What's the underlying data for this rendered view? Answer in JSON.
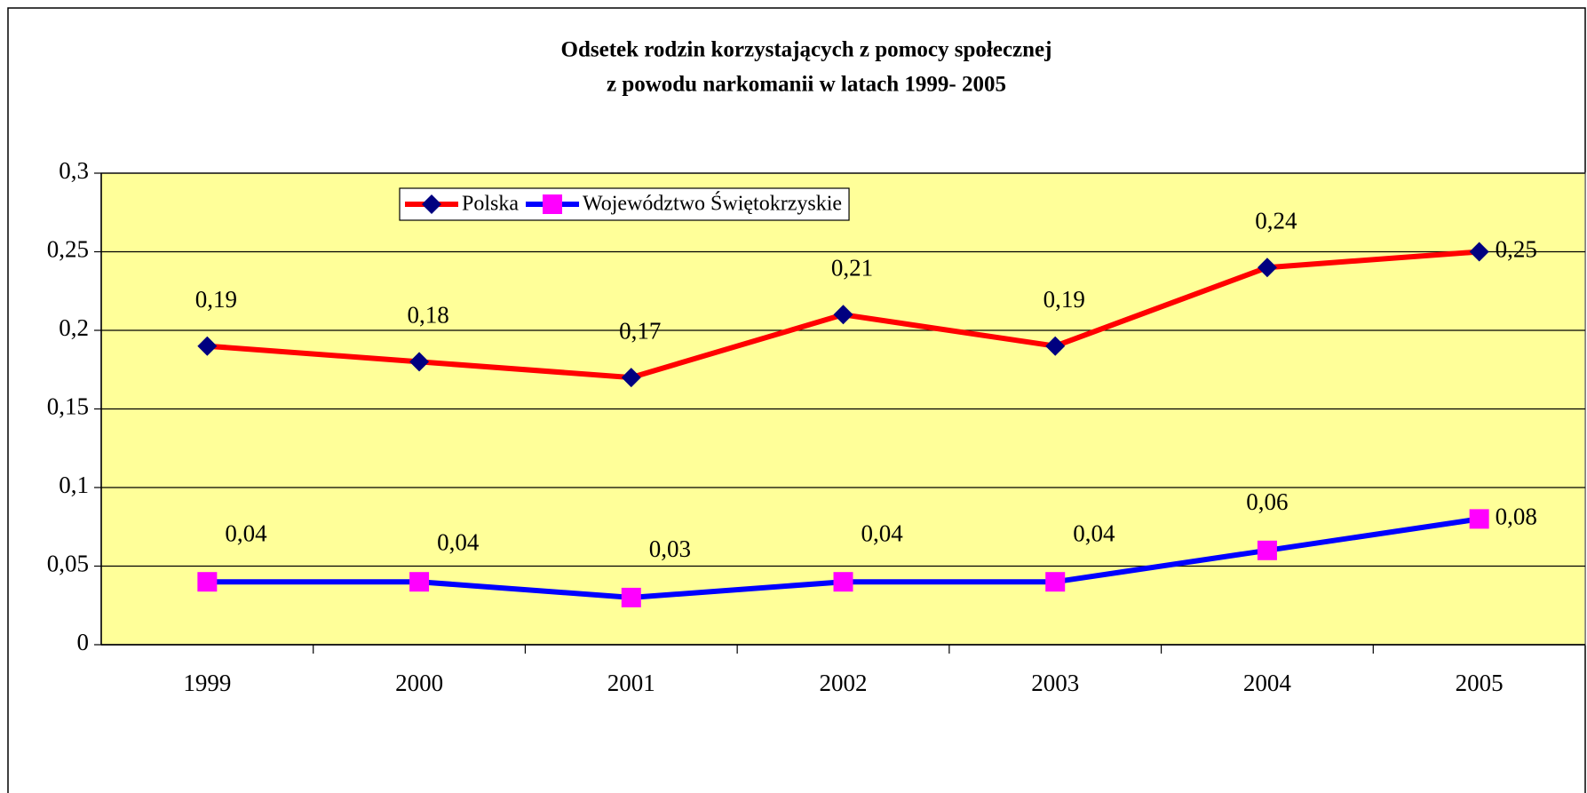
{
  "chart_data": {
    "type": "line",
    "title": [
      "Odsetek rodzin korzystających z pomocy społecznej",
      "z powodu narkomanii w latach 1999- 2005"
    ],
    "categories": [
      "1999",
      "2000",
      "2001",
      "2002",
      "2003",
      "2004",
      "2005"
    ],
    "series": [
      {
        "name": "Polska",
        "color": "#ff0000",
        "marker_color": "#000080",
        "marker": "diamond",
        "values": [
          0.19,
          0.18,
          0.17,
          0.21,
          0.19,
          0.24,
          0.25
        ],
        "value_labels": [
          "0,19",
          "0,18",
          "0,17",
          "0,21",
          "0,19",
          "0,24",
          "0,25"
        ]
      },
      {
        "name": "Województwo Świętokrzyskie",
        "color": "#0000ff",
        "marker_color": "#ff00ff",
        "marker": "square",
        "values": [
          0.04,
          0.04,
          0.03,
          0.04,
          0.04,
          0.06,
          0.08
        ],
        "value_labels": [
          "0,04",
          "0,04",
          "0,03",
          "0,04",
          "0,04",
          "0,06",
          "0,08"
        ]
      }
    ],
    "ylim": [
      0,
      0.3
    ],
    "yticks": [
      {
        "value": 0,
        "label": "0"
      },
      {
        "value": 0.05,
        "label": "0,05"
      },
      {
        "value": 0.1,
        "label": "0,1"
      },
      {
        "value": 0.15,
        "label": "0,15"
      },
      {
        "value": 0.2,
        "label": "0,2"
      },
      {
        "value": 0.25,
        "label": "0,25"
      },
      {
        "value": 0.3,
        "label": "0,3"
      }
    ],
    "grid": true,
    "legend": "upper left",
    "plot_background": "#ffff99"
  }
}
